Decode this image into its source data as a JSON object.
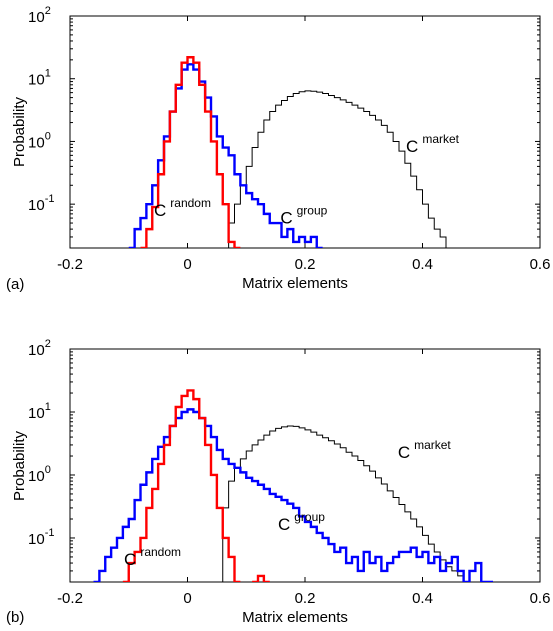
{
  "chart_data": [
    {
      "panel_label": "(a)",
      "type": "line",
      "xlabel": "Matrix elements",
      "ylabel": "Probability",
      "xlim": [
        -0.2,
        0.6
      ],
      "ylim": [
        0.02,
        100
      ],
      "yscale": "log",
      "xticks": [
        "-0.2",
        "0",
        "0.2",
        "0.4",
        "0.6"
      ],
      "yticks": [
        {
          "base": "10",
          "exp": "2"
        },
        {
          "base": "10",
          "exp": "1"
        },
        {
          "base": "10",
          "exp": "0"
        },
        {
          "base": "10",
          "exp": "-1"
        }
      ],
      "series": [
        {
          "name": "C random",
          "color": "#ff0000",
          "x": [
            -0.075,
            -0.065,
            -0.055,
            -0.045,
            -0.035,
            -0.025,
            -0.015,
            -0.005,
            0.005,
            0.015,
            0.025,
            0.035,
            0.045,
            0.055,
            0.065,
            0.075,
            0.085
          ],
          "y": [
            0.02,
            0.04,
            0.09,
            0.3,
            1,
            3,
            8,
            18,
            22,
            18,
            8,
            3,
            1,
            0.3,
            0.1,
            0.025,
            0.02
          ]
        },
        {
          "name": "C group",
          "color": "#0000ff",
          "x": [
            -0.095,
            -0.085,
            -0.075,
            -0.065,
            -0.055,
            -0.045,
            -0.035,
            -0.025,
            -0.015,
            -0.005,
            0.005,
            0.015,
            0.025,
            0.035,
            0.045,
            0.055,
            0.065,
            0.075,
            0.085,
            0.095,
            0.105,
            0.115,
            0.125,
            0.135,
            0.145,
            0.155,
            0.165,
            0.175,
            0.185,
            0.195,
            0.205,
            0.215,
            0.225
          ],
          "y": [
            0.02,
            0.04,
            0.06,
            0.1,
            0.2,
            0.5,
            1.2,
            3,
            7,
            14,
            17,
            14,
            9,
            5,
            2.5,
            1.2,
            0.8,
            0.6,
            0.3,
            0.2,
            0.15,
            0.12,
            0.1,
            0.07,
            0.05,
            0.05,
            0.03,
            0.04,
            0.025,
            0.03,
            0.025,
            0.03,
            0.02
          ]
        },
        {
          "name": "C market",
          "color": "#000000",
          "x": [
            0.065,
            0.075,
            0.085,
            0.095,
            0.105,
            0.115,
            0.125,
            0.135,
            0.145,
            0.155,
            0.165,
            0.175,
            0.185,
            0.195,
            0.205,
            0.215,
            0.225,
            0.235,
            0.245,
            0.255,
            0.265,
            0.275,
            0.285,
            0.295,
            0.305,
            0.315,
            0.325,
            0.335,
            0.345,
            0.355,
            0.365,
            0.375,
            0.385,
            0.395,
            0.405,
            0.415,
            0.425,
            0.435,
            0.445,
            0.455
          ],
          "y": [
            0.02,
            0.05,
            0.1,
            0.2,
            0.4,
            0.8,
            1.4,
            2.2,
            3,
            3.8,
            4.5,
            5.2,
            5.8,
            6.2,
            6.4,
            6.3,
            6.1,
            5.8,
            5.4,
            5,
            4.6,
            4.2,
            3.8,
            3.4,
            3,
            2.6,
            2.2,
            1.8,
            1.4,
            1,
            0.7,
            0.45,
            0.28,
            0.17,
            0.1,
            0.06,
            0.04,
            0.03,
            0.02,
            0.02
          ]
        }
      ],
      "annotations": [
        {
          "main": "C",
          "sup": "random",
          "x": -0.057,
          "y": 0.065
        },
        {
          "main": "C",
          "sup": "group",
          "x": 0.158,
          "y": 0.049
        },
        {
          "main": "C",
          "sup": "market",
          "x": 0.372,
          "y": 0.68
        }
      ]
    },
    {
      "panel_label": "(b)",
      "type": "line",
      "xlabel": "Matrix elements",
      "ylabel": "Probability",
      "xlim": [
        -0.2,
        0.6
      ],
      "ylim": [
        0.02,
        100
      ],
      "yscale": "log",
      "xticks": [
        "-0.2",
        "0",
        "0.2",
        "0.4",
        "0.6"
      ],
      "yticks": [
        {
          "base": "10",
          "exp": "2"
        },
        {
          "base": "10",
          "exp": "1"
        },
        {
          "base": "10",
          "exp": "0"
        },
        {
          "base": "10",
          "exp": "-1"
        }
      ],
      "series": [
        {
          "name": "C random",
          "color": "#ff0000",
          "x": [
            -0.105,
            -0.095,
            -0.085,
            -0.075,
            -0.065,
            -0.055,
            -0.045,
            -0.035,
            -0.025,
            -0.015,
            -0.005,
            0.005,
            0.015,
            0.025,
            0.035,
            0.045,
            0.055,
            0.065,
            0.075,
            0.085,
            0.115,
            0.125,
            0.135
          ],
          "y": [
            0.02,
            0.04,
            0.06,
            0.1,
            0.3,
            0.6,
            1.5,
            3,
            6,
            12,
            18,
            22,
            16,
            8,
            3,
            1,
            0.3,
            0.1,
            0.05,
            0.02,
            0.02,
            0.025,
            0.02
          ]
        },
        {
          "name": "C group",
          "color": "#0000ff",
          "x": [
            -0.155,
            -0.145,
            -0.135,
            -0.125,
            -0.115,
            -0.105,
            -0.095,
            -0.085,
            -0.075,
            -0.065,
            -0.055,
            -0.045,
            -0.035,
            -0.025,
            -0.015,
            -0.005,
            0.005,
            0.015,
            0.025,
            0.035,
            0.045,
            0.055,
            0.065,
            0.075,
            0.085,
            0.095,
            0.105,
            0.115,
            0.125,
            0.135,
            0.145,
            0.155,
            0.165,
            0.175,
            0.185,
            0.195,
            0.205,
            0.215,
            0.225,
            0.235,
            0.245,
            0.255,
            0.265,
            0.275,
            0.285,
            0.295,
            0.305,
            0.315,
            0.325,
            0.335,
            0.345,
            0.355,
            0.365,
            0.375,
            0.385,
            0.395,
            0.405,
            0.415,
            0.425,
            0.435,
            0.445,
            0.455,
            0.465,
            0.475,
            0.485,
            0.495,
            0.505,
            0.515
          ],
          "y": [
            0.02,
            0.03,
            0.05,
            0.07,
            0.1,
            0.15,
            0.2,
            0.4,
            0.7,
            1.1,
            1.8,
            2.8,
            4,
            6,
            8,
            10,
            11,
            10,
            8,
            6,
            4,
            2.5,
            1.8,
            1.5,
            1.3,
            1.1,
            0.9,
            0.8,
            0.7,
            0.6,
            0.5,
            0.45,
            0.4,
            0.35,
            0.3,
            0.22,
            0.18,
            0.15,
            0.12,
            0.1,
            0.08,
            0.06,
            0.07,
            0.04,
            0.05,
            0.03,
            0.06,
            0.04,
            0.05,
            0.03,
            0.04,
            0.05,
            0.06,
            0.06,
            0.07,
            0.05,
            0.06,
            0.04,
            0.05,
            0.03,
            0.04,
            0.05,
            0.03,
            0.02,
            0.03,
            0.04,
            0.02,
            0.02
          ]
        },
        {
          "name": "C market",
          "color": "#000000",
          "x": [
            0.055,
            0.065,
            0.075,
            0.085,
            0.095,
            0.105,
            0.115,
            0.125,
            0.135,
            0.145,
            0.155,
            0.165,
            0.175,
            0.185,
            0.195,
            0.205,
            0.215,
            0.225,
            0.235,
            0.245,
            0.255,
            0.265,
            0.275,
            0.285,
            0.295,
            0.305,
            0.315,
            0.325,
            0.335,
            0.345,
            0.355,
            0.365,
            0.375,
            0.385,
            0.395,
            0.405,
            0.415,
            0.425,
            0.435,
            0.445,
            0.455,
            0.465,
            0.475,
            0.485,
            0.495,
            0.505
          ],
          "y": [
            0.02,
            0.3,
            0.8,
            1.3,
            1.8,
            2.4,
            3,
            3.6,
            4.3,
            5,
            5.5,
            5.8,
            6,
            5.9,
            5.6,
            5.2,
            4.8,
            4.3,
            3.9,
            3.5,
            3.1,
            2.7,
            2.3,
            2,
            1.7,
            1.4,
            1.15,
            0.9,
            0.72,
            0.56,
            0.44,
            0.34,
            0.26,
            0.2,
            0.15,
            0.11,
            0.08,
            0.06,
            0.045,
            0.035,
            0.03,
            0.025,
            0.02,
            0.02,
            0.02,
            0.02
          ]
        }
      ],
      "annotations": [
        {
          "main": "C",
          "sup": "random",
          "x": -0.108,
          "y": 0.037
        },
        {
          "main": "C",
          "sup": "group",
          "x": 0.154,
          "y": 0.135
        },
        {
          "main": "C",
          "sup": "market",
          "x": 0.358,
          "y": 1.85
        }
      ]
    }
  ]
}
